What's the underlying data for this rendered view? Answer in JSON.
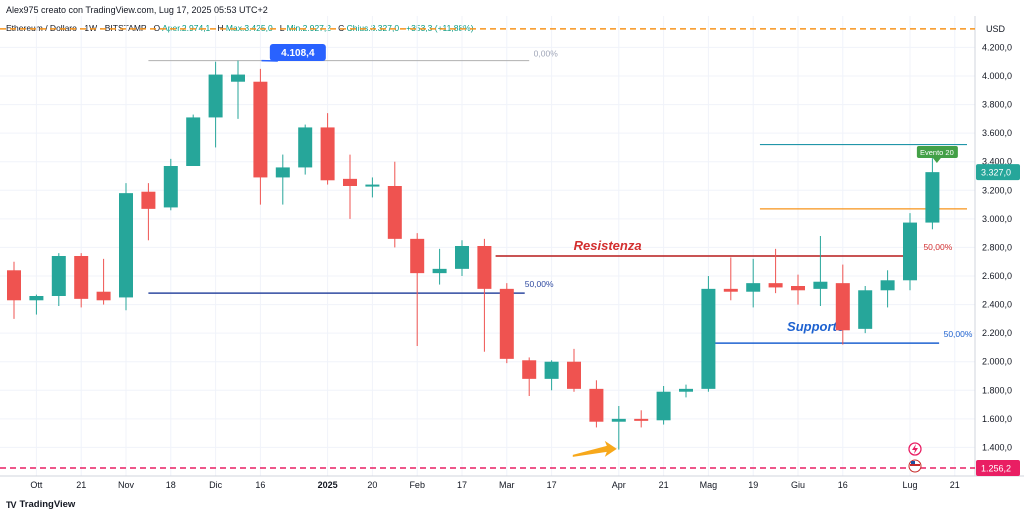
{
  "header": {
    "credit": "Alex975 creato con TradingView.com, Lug 17, 2025 05:53 UTC+2"
  },
  "legend": {
    "symbol": "Ethereum / Dollaro · 1W · BITSTAMP",
    "open_label": "O",
    "open_text": "Aper.2.974,1",
    "high_label": "H",
    "high_text": "Max.3.425,0",
    "low_label": "L",
    "low_text": "Min.2.927,2",
    "close_label": "C",
    "close_text": "Chius.3.327,0",
    "change_text": "+353,3 (+11,88%)"
  },
  "brand": {
    "name": "TradingView",
    "logo": "TV"
  },
  "chart_data": {
    "type": "candlestick",
    "currency": "USD",
    "y_range": [
      1200,
      4420
    ],
    "y_ticks": [
      {
        "v": 1400,
        "label": "1.400,0"
      },
      {
        "v": 1600,
        "label": "1.600,0"
      },
      {
        "v": 1800,
        "label": "1.800,0"
      },
      {
        "v": 2000,
        "label": "2.000,0"
      },
      {
        "v": 2200,
        "label": "2.200,0"
      },
      {
        "v": 2400,
        "label": "2.400,0"
      },
      {
        "v": 2600,
        "label": "2.600,0"
      },
      {
        "v": 2800,
        "label": "2.800,0"
      },
      {
        "v": 3000,
        "label": "3.000,0"
      },
      {
        "v": 3200,
        "label": "3.200,0"
      },
      {
        "v": 3400,
        "label": "3.400,0"
      },
      {
        "v": 3600,
        "label": "3.600,0"
      },
      {
        "v": 3800,
        "label": "3.800,0"
      },
      {
        "v": 4000,
        "label": "4.000,0"
      },
      {
        "v": 4200,
        "label": "4.200,0"
      }
    ],
    "x_ticks": [
      {
        "i": 1,
        "label": "Ott",
        "bold": false
      },
      {
        "i": 3,
        "label": "21",
        "bold": false
      },
      {
        "i": 5,
        "label": "Nov",
        "bold": false
      },
      {
        "i": 7,
        "label": "18",
        "bold": false
      },
      {
        "i": 9,
        "label": "Dic",
        "bold": false
      },
      {
        "i": 11,
        "label": "16",
        "bold": false
      },
      {
        "i": 14,
        "label": "2025",
        "bold": true
      },
      {
        "i": 16,
        "label": "20",
        "bold": false
      },
      {
        "i": 18,
        "label": "Feb",
        "bold": false
      },
      {
        "i": 20,
        "label": "17",
        "bold": false
      },
      {
        "i": 22,
        "label": "Mar",
        "bold": false
      },
      {
        "i": 24,
        "label": "17",
        "bold": false
      },
      {
        "i": 27,
        "label": "Apr",
        "bold": false
      },
      {
        "i": 29,
        "label": "21",
        "bold": false
      },
      {
        "i": 31,
        "label": "Mag",
        "bold": false
      },
      {
        "i": 33,
        "label": "19",
        "bold": false
      },
      {
        "i": 35,
        "label": "Giu",
        "bold": false
      },
      {
        "i": 37,
        "label": "16",
        "bold": false
      },
      {
        "i": 40,
        "label": "Lug",
        "bold": false
      },
      {
        "i": 42,
        "label": "21",
        "bold": false
      }
    ],
    "candles": [
      {
        "o": 2640,
        "h": 2700,
        "l": 2300,
        "c": 2430
      },
      {
        "o": 2430,
        "h": 2470,
        "l": 2330,
        "c": 2460
      },
      {
        "o": 2460,
        "h": 2760,
        "l": 2390,
        "c": 2740
      },
      {
        "o": 2740,
        "h": 2760,
        "l": 2380,
        "c": 2440
      },
      {
        "o": 2490,
        "h": 2720,
        "l": 2400,
        "c": 2430
      },
      {
        "o": 2450,
        "h": 3250,
        "l": 2360,
        "c": 3180
      },
      {
        "o": 3190,
        "h": 3250,
        "l": 2850,
        "c": 3070
      },
      {
        "o": 3080,
        "h": 3420,
        "l": 3060,
        "c": 3370
      },
      {
        "o": 3370,
        "h": 3730,
        "l": 3370,
        "c": 3710
      },
      {
        "o": 3710,
        "h": 4100,
        "l": 3500,
        "c": 4010
      },
      {
        "o": 3960,
        "h": 4108,
        "l": 3700,
        "c": 4010
      },
      {
        "o": 3960,
        "h": 4050,
        "l": 3100,
        "c": 3290
      },
      {
        "o": 3290,
        "h": 3450,
        "l": 3100,
        "c": 3360
      },
      {
        "o": 3360,
        "h": 3660,
        "l": 3310,
        "c": 3640
      },
      {
        "o": 3640,
        "h": 3740,
        "l": 3240,
        "c": 3270
      },
      {
        "o": 3280,
        "h": 3450,
        "l": 3000,
        "c": 3230
      },
      {
        "o": 3230,
        "h": 3290,
        "l": 3150,
        "c": 3240
      },
      {
        "o": 3230,
        "h": 3400,
        "l": 2800,
        "c": 2860
      },
      {
        "o": 2860,
        "h": 2900,
        "l": 2110,
        "c": 2620
      },
      {
        "o": 2620,
        "h": 2790,
        "l": 2540,
        "c": 2650
      },
      {
        "o": 2650,
        "h": 2850,
        "l": 2600,
        "c": 2810
      },
      {
        "o": 2810,
        "h": 2860,
        "l": 2070,
        "c": 2510
      },
      {
        "o": 2510,
        "h": 2550,
        "l": 1990,
        "c": 2020
      },
      {
        "o": 2010,
        "h": 2030,
        "l": 1760,
        "c": 1880
      },
      {
        "o": 1880,
        "h": 2010,
        "l": 1800,
        "c": 2000
      },
      {
        "o": 2000,
        "h": 2090,
        "l": 1790,
        "c": 1810
      },
      {
        "o": 1810,
        "h": 1870,
        "l": 1540,
        "c": 1580
      },
      {
        "o": 1580,
        "h": 1690,
        "l": 1385,
        "c": 1600
      },
      {
        "o": 1600,
        "h": 1660,
        "l": 1540,
        "c": 1590
      },
      {
        "o": 1590,
        "h": 1830,
        "l": 1560,
        "c": 1790
      },
      {
        "o": 1790,
        "h": 1840,
        "l": 1750,
        "c": 1810
      },
      {
        "o": 1810,
        "h": 2600,
        "l": 1790,
        "c": 2510
      },
      {
        "o": 2510,
        "h": 2730,
        "l": 2430,
        "c": 2490
      },
      {
        "o": 2490,
        "h": 2720,
        "l": 2380,
        "c": 2550
      },
      {
        "o": 2550,
        "h": 2790,
        "l": 2480,
        "c": 2520
      },
      {
        "o": 2530,
        "h": 2610,
        "l": 2400,
        "c": 2500
      },
      {
        "o": 2510,
        "h": 2880,
        "l": 2390,
        "c": 2560
      },
      {
        "o": 2550,
        "h": 2680,
        "l": 2120,
        "c": 2220
      },
      {
        "o": 2230,
        "h": 2530,
        "l": 2200,
        "c": 2500
      },
      {
        "o": 2500,
        "h": 2640,
        "l": 2380,
        "c": 2570
      },
      {
        "o": 2570,
        "h": 3040,
        "l": 2500,
        "c": 2974
      },
      {
        "o": 2974,
        "h": 3425,
        "l": 2927,
        "c": 3327
      }
    ],
    "hlines": [
      {
        "value": 4330,
        "color": "#f7931a",
        "style": "dashed"
      },
      {
        "value": 1256.2,
        "color": "#e91e63",
        "style": "dashed"
      }
    ],
    "annotations": {
      "max_callout": "4.108,4",
      "fib_top_label": "0,00%",
      "fib_left_label": "50,00%",
      "fib_right_50": "50,00%",
      "fib_right_top": "50,00%",
      "resistance": "Resistenza",
      "support": "Supporto",
      "event_badge": "Evento 20",
      "price_tag": "3.327,0",
      "low_tag": "1.256,2"
    },
    "colors": {
      "up": "#26a69a",
      "down": "#ef5350",
      "resistance": "#b71c1c",
      "support": "#1e62d0",
      "fib": "#2f4aa0",
      "orange": "#f7931a",
      "cyan": "#2196a9"
    }
  }
}
